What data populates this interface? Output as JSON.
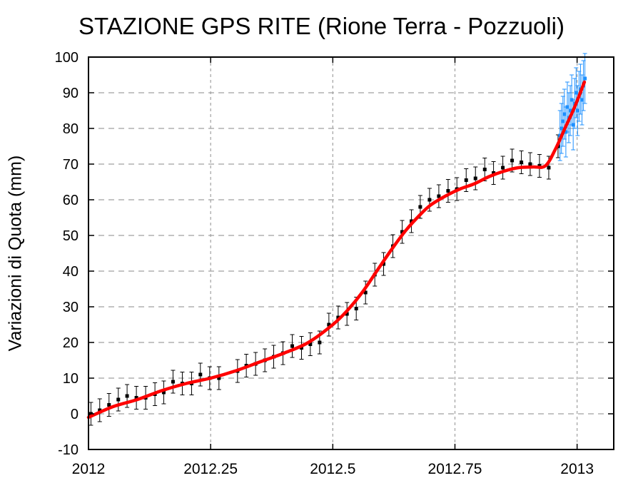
{
  "chart_data": {
    "type": "line",
    "title": "STAZIONE GPS RITE (Rione Terra - Pozzuoli)",
    "xlabel": "",
    "ylabel": "Variazioni di Quota (mm)",
    "xlim": [
      2012,
      2013.075
    ],
    "ylim": [
      -10,
      100
    ],
    "xticks": [
      2012,
      2012.25,
      2012.5,
      2012.75,
      2013
    ],
    "xtick_labels": [
      "2012",
      "2012.25",
      "2012.5",
      "2012.75",
      "2013"
    ],
    "yticks": [
      -10,
      0,
      10,
      20,
      30,
      40,
      50,
      60,
      70,
      80,
      90,
      100
    ],
    "ytick_labels": [
      "-10",
      "0",
      "10",
      "20",
      "30",
      "40",
      "50",
      "60",
      "70",
      "80",
      "90",
      "100"
    ],
    "grid": true,
    "colors": {
      "points": "#000000",
      "recent_points": "#1e90ff",
      "fit": "#ff0000",
      "grid": "#a0a0a0"
    },
    "series": [
      {
        "kind": "points_with_errorbars",
        "x": [
          2012.005,
          2012.023,
          2012.042,
          2012.061,
          2012.079,
          2012.098,
          2012.117,
          2012.136,
          2012.154,
          2012.173,
          2012.192,
          2012.211,
          2012.229,
          2012.248,
          2012.267,
          2012.305,
          2012.323,
          2012.342,
          2012.361,
          2012.379,
          2012.398,
          2012.417,
          2012.436,
          2012.454,
          2012.473,
          2012.492,
          2012.511,
          2012.529,
          2012.548,
          2012.567,
          2012.586,
          2012.604,
          2012.623,
          2012.642,
          2012.661,
          2012.679,
          2012.698,
          2012.717,
          2012.736,
          2012.754,
          2012.773,
          2012.792,
          2012.811,
          2012.829,
          2012.848,
          2012.867,
          2012.886,
          2012.904,
          2012.923,
          2012.942,
          2012.961
        ],
        "y": [
          0,
          1,
          2.5,
          4,
          5,
          4.5,
          4.5,
          5.5,
          6,
          9,
          8.5,
          8.5,
          11,
          10,
          10,
          12,
          13.5,
          14,
          15,
          16,
          17,
          19,
          18.5,
          19.5,
          20,
          25,
          27,
          28,
          29.5,
          34,
          39,
          42,
          47,
          51,
          54,
          58,
          60,
          61,
          62.5,
          63,
          65.5,
          66,
          68.5,
          67.5,
          69,
          71,
          70.5,
          70,
          69.5,
          69,
          75
        ],
        "err": 3.2
      },
      {
        "kind": "recent_points_with_errorbars",
        "x": [
          2012.965,
          2012.968,
          2012.971,
          2012.974,
          2012.977,
          2012.98,
          2012.983,
          2012.986,
          2012.989,
          2012.992,
          2012.995,
          2012.998,
          2013.001,
          2013.004,
          2013.007,
          2013.01,
          2013.013,
          2013.016
        ],
        "y": [
          78,
          80,
          82,
          84,
          79,
          86,
          83,
          85,
          88,
          81,
          87,
          90,
          85,
          89,
          91,
          88,
          92,
          94
        ],
        "err": 7
      },
      {
        "kind": "fit_curve",
        "x": [
          2012.0,
          2012.05,
          2012.1,
          2012.15,
          2012.2,
          2012.25,
          2012.3,
          2012.35,
          2012.4,
          2012.45,
          2012.5,
          2012.53,
          2012.56,
          2012.59,
          2012.62,
          2012.65,
          2012.68,
          2012.7,
          2012.73,
          2012.76,
          2012.79,
          2012.82,
          2012.85,
          2012.88,
          2012.91,
          2012.935,
          2012.955,
          2012.975,
          2012.995,
          2013.015
        ],
        "y": [
          -1,
          2,
          4,
          6.5,
          8.5,
          10,
          12,
          14.5,
          17,
          20,
          25,
          29,
          34,
          40,
          46,
          51.5,
          56,
          58.5,
          61,
          63,
          64.5,
          66.5,
          68,
          69,
          69.2,
          69.5,
          74,
          80,
          86,
          93
        ]
      }
    ]
  }
}
